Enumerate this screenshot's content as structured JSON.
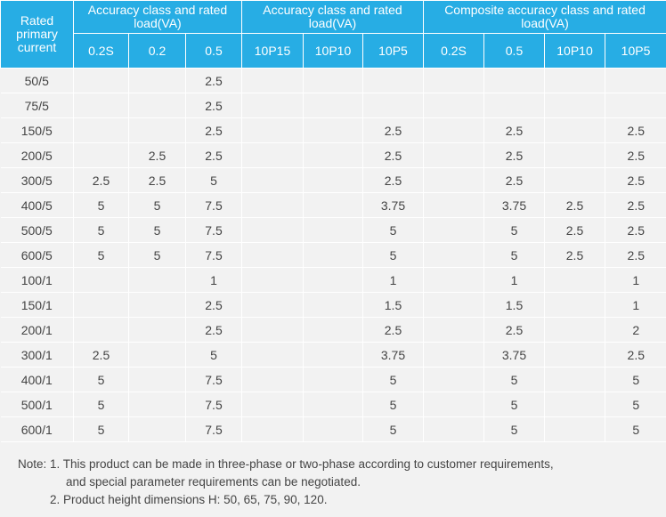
{
  "table": {
    "group_headers": [
      "Rated primary current",
      "Accuracy class and rated load(VA)",
      "Accuracy class and rated load(VA)",
      "Composite accuracy class and rated load(VA)"
    ],
    "sub_headers": [
      "0.2S",
      "0.2",
      "0.5",
      "10P15",
      "10P10",
      "10P5",
      "0.2S",
      "0.5",
      "10P10",
      "10P5"
    ],
    "rows": [
      [
        "50/5",
        "",
        "",
        "2.5",
        "",
        "",
        "",
        "",
        "",
        "",
        ""
      ],
      [
        "75/5",
        "",
        "",
        "2.5",
        "",
        "",
        "",
        "",
        "",
        "",
        ""
      ],
      [
        "150/5",
        "",
        "",
        "2.5",
        "",
        "",
        "2.5",
        "",
        "2.5",
        "",
        "2.5"
      ],
      [
        "200/5",
        "",
        "2.5",
        "2.5",
        "",
        "",
        "2.5",
        "",
        "2.5",
        "",
        "2.5"
      ],
      [
        "300/5",
        "2.5",
        "2.5",
        "5",
        "",
        "",
        "2.5",
        "",
        "2.5",
        "",
        "2.5"
      ],
      [
        "400/5",
        "5",
        "5",
        "7.5",
        "",
        "",
        "3.75",
        "",
        "3.75",
        "2.5",
        "2.5"
      ],
      [
        "500/5",
        "5",
        "5",
        "7.5",
        "",
        "",
        "5",
        "",
        "5",
        "2.5",
        "2.5"
      ],
      [
        "600/5",
        "5",
        "5",
        "7.5",
        "",
        "",
        "5",
        "",
        "5",
        "2.5",
        "2.5"
      ],
      [
        "100/1",
        "",
        "",
        "1",
        "",
        "",
        "1",
        "",
        "1",
        "",
        "1"
      ],
      [
        "150/1",
        "",
        "",
        "2.5",
        "",
        "",
        "1.5",
        "",
        "1.5",
        "",
        "1"
      ],
      [
        "200/1",
        "",
        "",
        "2.5",
        "",
        "",
        "2.5",
        "",
        "2.5",
        "",
        "2"
      ],
      [
        "300/1",
        "2.5",
        "",
        "5",
        "",
        "",
        "3.75",
        "",
        "3.75",
        "",
        "2.5"
      ],
      [
        "400/1",
        "5",
        "",
        "7.5",
        "",
        "",
        "5",
        "",
        "5",
        "",
        "5"
      ],
      [
        "500/1",
        "5",
        "",
        "7.5",
        "",
        "",
        "5",
        "",
        "5",
        "",
        "5"
      ],
      [
        "600/1",
        "5",
        "",
        "7.5",
        "",
        "",
        "5",
        "",
        "5",
        "",
        "5"
      ]
    ]
  },
  "note": {
    "line1": "Note: 1. This product can be made in three-phase or two-phase according to customer requirements,",
    "line2": "and special parameter requirements can be negotiated.",
    "line3": "2. Product height dimensions H: 50, 65, 75, 90, 120."
  },
  "colors": {
    "header_background": "#27ade4",
    "header_text": "#ffffff",
    "body_background": "#f2f2f2",
    "grid_lines": "#ffffff"
  }
}
